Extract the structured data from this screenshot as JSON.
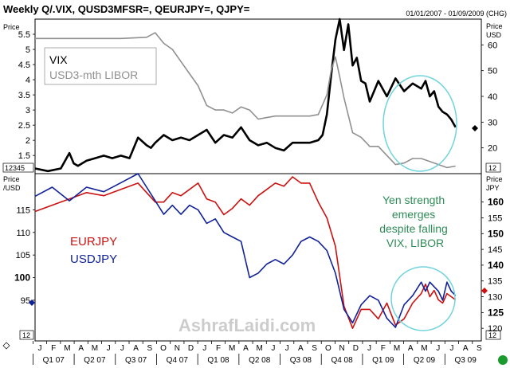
{
  "header": {
    "title": "Weekly Q/.VIX, QUSD3MFSR=, QEURJPY=, QJPY=",
    "date_range": "01/01/2007 - 01/09/2009 (CHG)"
  },
  "watermark": "AshrafLaidi.com",
  "colors": {
    "vix": "#000000",
    "libor": "#909090",
    "eurjpy": "#cc1111",
    "usdjpy": "#112299",
    "annotation": "#2e8b57",
    "circle": "#6fd3dc",
    "grid_bg": "#ffffff"
  },
  "chart_data": [
    {
      "type": "line",
      "title": "VIX / USD3-mth LIBOR",
      "left_axis": {
        "label": "Price",
        "ticks": [
          "5.5",
          "5",
          "4.5",
          "4",
          "3.5",
          "3",
          "2.5",
          "2",
          "1.5"
        ],
        "ylim": [
          0.9,
          6.0
        ]
      },
      "right_axis": {
        "label": "Price USD",
        "ticks": [
          "60",
          "50",
          "40",
          "30",
          "20"
        ],
        "ylim": [
          10,
          70
        ]
      },
      "corner_labels": {
        "left": "12345",
        "right": "12"
      },
      "legend": [
        "VIX",
        "USD3-mth LIBOR"
      ],
      "x_range": [
        0,
        104
      ],
      "series": [
        {
          "name": "VIX",
          "axis": "right",
          "x": [
            0,
            3,
            6,
            8,
            9,
            10,
            12,
            14,
            16,
            18,
            20,
            22,
            24,
            26,
            27,
            28,
            30,
            32,
            34,
            36,
            38,
            40,
            42,
            44,
            46,
            48,
            50,
            52,
            54,
            56,
            58,
            60,
            62,
            64,
            66,
            67,
            68,
            69,
            70,
            71,
            72,
            73,
            74,
            75,
            76,
            77,
            78,
            80,
            82,
            84,
            86,
            88,
            90,
            91,
            92,
            93,
            94,
            95,
            96,
            97,
            98
          ],
          "values": [
            12,
            11,
            12,
            18,
            14,
            13,
            15,
            16,
            17,
            16,
            17,
            16,
            24,
            21,
            20,
            22,
            25,
            23,
            24,
            23,
            25,
            27,
            22,
            25,
            24,
            28,
            23,
            21,
            22,
            20,
            19,
            22,
            22,
            22,
            23,
            25,
            33,
            48,
            62,
            70,
            58,
            68,
            52,
            55,
            46,
            45,
            38,
            46,
            40,
            47,
            42,
            45,
            43,
            46,
            40,
            42,
            36,
            34,
            33,
            31,
            28
          ]
        },
        {
          "name": "USD3-mth LIBOR",
          "axis": "left",
          "x": [
            0,
            20,
            26,
            28,
            30,
            32,
            34,
            36,
            38,
            40,
            42,
            44,
            46,
            48,
            50,
            52,
            54,
            56,
            58,
            60,
            62,
            64,
            66,
            68,
            69,
            70,
            71,
            72,
            74,
            76,
            78,
            80,
            82,
            84,
            86,
            88,
            90,
            92,
            94,
            96,
            98
          ],
          "values": [
            5.36,
            5.36,
            5.4,
            5.55,
            5.2,
            5.0,
            4.6,
            4.2,
            3.8,
            3.15,
            3.0,
            3.0,
            2.9,
            3.1,
            3.0,
            2.7,
            2.75,
            2.8,
            2.8,
            2.8,
            2.8,
            2.8,
            2.85,
            3.5,
            4.3,
            4.75,
            4.1,
            3.4,
            2.25,
            2.1,
            1.8,
            1.8,
            1.5,
            1.2,
            1.25,
            1.4,
            1.4,
            1.3,
            1.2,
            1.1,
            1.15
          ]
        }
      ]
    },
    {
      "type": "line",
      "title": "EURJPY / USDJPY",
      "left_axis": {
        "label": "Price /USD",
        "ticks": [
          "115",
          "110",
          "105",
          "100",
          "95"
        ],
        "ylim": [
          86,
          123
        ]
      },
      "right_axis": {
        "label": "Price JPY",
        "ticks": [
          "160",
          "155",
          "150",
          "145",
          "140",
          "135",
          "130",
          "125",
          "120"
        ],
        "ylim": [
          116,
          169
        ]
      },
      "corner_labels": {
        "left": "12",
        "right": "12"
      },
      "legend": [
        "EURJPY",
        "USDJPY"
      ],
      "annotation": "Yen strength emerges despite falling VIX, LIBOR",
      "x_range": [
        0,
        104
      ],
      "x_ticks": [
        "J",
        "F",
        "M",
        "A",
        "M",
        "J",
        "J",
        "A",
        "S",
        "O",
        "N",
        "D",
        "J",
        "F",
        "M",
        "A",
        "M",
        "J",
        "J",
        "A",
        "S",
        "O",
        "N",
        "D",
        "J",
        "F",
        "M",
        "A",
        "M",
        "J",
        "J",
        "A",
        "S"
      ],
      "quarter_labels": [
        "Q1 07",
        "Q2 07",
        "Q3 07",
        "Q4 07",
        "Q1 08",
        "Q2 08",
        "Q3 08",
        "Q4 08",
        "Q1 09",
        "Q2 09",
        "Q3 09"
      ],
      "series": [
        {
          "name": "EURJPY",
          "axis": "right",
          "x": [
            0,
            4,
            8,
            12,
            16,
            20,
            24,
            26,
            28,
            30,
            32,
            34,
            36,
            38,
            40,
            42,
            44,
            46,
            48,
            50,
            52,
            54,
            56,
            58,
            60,
            62,
            64,
            66,
            68,
            70,
            72,
            74,
            76,
            78,
            80,
            82,
            84,
            86,
            88,
            90,
            91,
            92,
            93,
            94,
            95,
            96,
            97,
            98
          ],
          "values": [
            157,
            159,
            161,
            163,
            162,
            164,
            166,
            163,
            160,
            160,
            163,
            162,
            164,
            166,
            161,
            160,
            156,
            158,
            161,
            159,
            162,
            164,
            166,
            165,
            168,
            166,
            166,
            160,
            155,
            146,
            127,
            120,
            126,
            126,
            123,
            128,
            121,
            123,
            128,
            131,
            134,
            130,
            132,
            129,
            128,
            131,
            130,
            129
          ]
        },
        {
          "name": "USDJPY",
          "axis": "left",
          "x": [
            0,
            4,
            8,
            12,
            16,
            20,
            24,
            26,
            28,
            30,
            32,
            34,
            36,
            38,
            40,
            42,
            44,
            46,
            48,
            50,
            52,
            54,
            56,
            58,
            60,
            62,
            64,
            66,
            68,
            70,
            72,
            74,
            76,
            78,
            80,
            82,
            84,
            86,
            88,
            90,
            91,
            92,
            93,
            94,
            95,
            96,
            97,
            98
          ],
          "values": [
            118,
            120,
            117,
            120,
            119,
            121,
            123,
            120,
            117,
            114,
            116,
            114,
            116,
            115,
            112,
            113,
            110,
            109,
            108,
            100,
            101,
            103,
            104,
            103,
            105,
            108,
            109,
            108,
            106,
            101,
            93,
            90,
            94,
            96,
            95,
            91,
            89,
            94,
            96,
            99,
            97,
            99,
            98,
            97,
            95,
            99,
            97,
            96
          ]
        }
      ]
    }
  ]
}
